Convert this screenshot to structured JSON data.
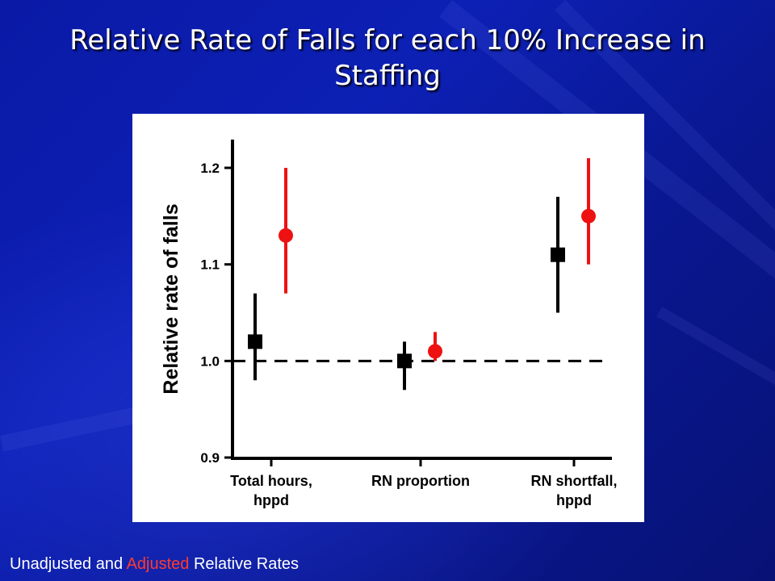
{
  "slide": {
    "title": "Relative Rate of Falls for each 10% Increase in Staffing",
    "footnote_part1": "Unadjusted and ",
    "footnote_adjusted": "Adjusted",
    "footnote_part2": " Relative Rates"
  },
  "colors": {
    "unadjusted": "#000000",
    "adjusted": "#ee1111",
    "adjusted_text": "#ff3b2f",
    "background": "#0d20b5"
  },
  "chart_data": {
    "type": "scatter",
    "title": "",
    "xlabel": "",
    "ylabel": "Relative rate of falls",
    "ylim": [
      0.9,
      1.23
    ],
    "yticks": [
      "0.9",
      "1.0",
      "1.1",
      "1.2"
    ],
    "categories": [
      "Total hours, hppd",
      "RN proportion",
      "RN shortfall, hppd"
    ],
    "category_label_lines": [
      [
        "Total hours,",
        "hppd"
      ],
      [
        "RN proportion"
      ],
      [
        "RN shortfall,",
        "hppd"
      ]
    ],
    "reference_line": 1.0,
    "series": [
      {
        "marker": "square",
        "color": "#000000",
        "points": [
          {
            "category": "Total hours, hppd",
            "y": 1.02,
            "lo": 0.98,
            "hi": 1.07
          },
          {
            "category": "RN proportion",
            "y": 1.0,
            "lo": 0.97,
            "hi": 1.02
          },
          {
            "category": "RN shortfall, hppd",
            "y": 1.11,
            "lo": 1.05,
            "hi": 1.17
          }
        ]
      },
      {
        "marker": "circle",
        "color": "#ee1111",
        "points": [
          {
            "category": "Total hours, hppd",
            "y": 1.13,
            "lo": 1.07,
            "hi": 1.2
          },
          {
            "category": "RN proportion",
            "y": 1.01,
            "lo": 1.0,
            "hi": 1.03
          },
          {
            "category": "RN shortfall, hppd",
            "y": 1.15,
            "lo": 1.1,
            "hi": 1.21
          }
        ]
      }
    ]
  }
}
